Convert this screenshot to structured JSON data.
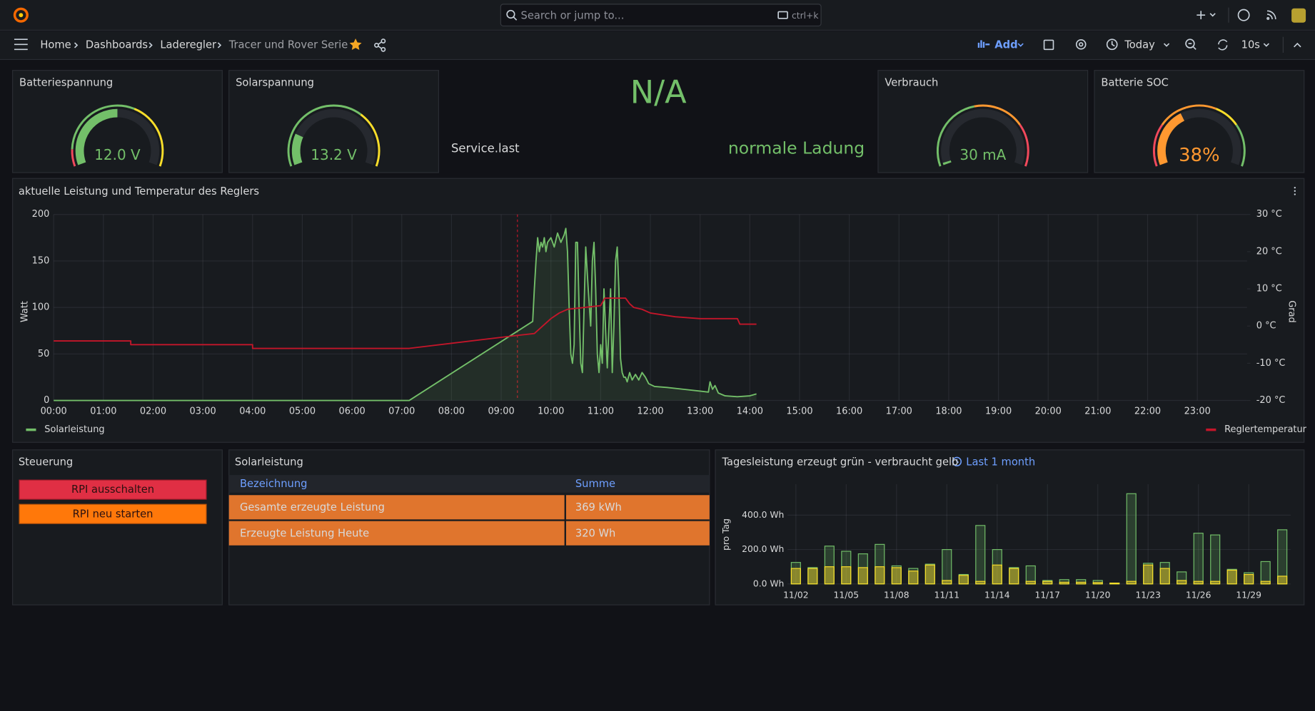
{
  "topbar": {
    "search_placeholder": "Search or jump to...",
    "search_shortcut": "ctrl+k"
  },
  "breadcrumbs": [
    "Home",
    "Dashboards",
    "Laderegler",
    "Tracer und Rover Serie"
  ],
  "toolbar": {
    "add": "Add",
    "time_range": "Today",
    "refresh_interval": "10s"
  },
  "status": {
    "value": "N/A",
    "field": "Service.last",
    "state": "normale Ladung"
  },
  "controls": {
    "title": "Steuerung",
    "buttons": [
      "RPI ausschalten",
      "RPI neu starten"
    ]
  },
  "table": {
    "title": "Solarleistung",
    "columns": [
      "Bezeichnung",
      "Summe"
    ],
    "rows": [
      [
        "Gesamte erzeugte Leistung",
        "369 kWh"
      ],
      [
        "Erzeugte Leistung Heute",
        "320 Wh"
      ]
    ]
  },
  "chart_data": [
    {
      "type": "gauge",
      "title": "Batteriespannung",
      "value": 12.0,
      "value_label": "12.0 V",
      "range": [
        11,
        13
      ],
      "color": "#73bf69",
      "thresholds": [
        {
          "value": 11,
          "color": "#f2495c"
        },
        {
          "value": 11.2,
          "color": "#73bf69"
        },
        {
          "value": 12.2,
          "color": "#fade2a"
        }
      ]
    },
    {
      "type": "gauge",
      "title": "Solarspannung",
      "value": 13.2,
      "value_label": "13.2 V",
      "range": [
        12,
        18
      ],
      "color": "#73bf69",
      "thresholds": [
        {
          "value": 12,
          "color": "#73bf69"
        },
        {
          "value": 16,
          "color": "#fade2a"
        }
      ]
    },
    {
      "type": "gauge",
      "title": "Verbrauch",
      "value": 30,
      "value_label": "30 mA",
      "range": [
        0,
        2000
      ],
      "color": "#73bf69",
      "thresholds": [
        {
          "value": 0,
          "color": "#73bf69"
        },
        {
          "value": 900,
          "color": "#ff9830"
        },
        {
          "value": 1500,
          "color": "#f2495c"
        }
      ]
    },
    {
      "type": "gauge",
      "title": "Batterie SOC",
      "value": 38,
      "value_label": "38%",
      "range": [
        0,
        100
      ],
      "color": "#ff9830",
      "thresholds": [
        {
          "value": 0,
          "color": "#f2495c"
        },
        {
          "value": 25,
          "color": "#ff9830"
        },
        {
          "value": 60,
          "color": "#fade2a"
        },
        {
          "value": 75,
          "color": "#73bf69"
        }
      ]
    },
    {
      "type": "line",
      "title": "aktuelle Leistung und Temperatur des Reglers",
      "ylabel": "Watt",
      "y2label": "Grad",
      "ylim": [
        0,
        200
      ],
      "yticks": [
        0,
        50,
        100,
        150,
        200
      ],
      "y2lim": [
        -20,
        30
      ],
      "y2ticks": [
        {
          "value": 30,
          "label": "30 °C"
        },
        {
          "value": 20,
          "label": "20 °C"
        },
        {
          "value": 10,
          "label": "10 °C"
        },
        {
          "value": 0,
          "label": "0 °C"
        },
        {
          "value": -10,
          "label": "-10 °C"
        },
        {
          "value": -20,
          "label": "-20 °C"
        }
      ],
      "xlim": [
        "00:00",
        "24:00"
      ],
      "xticks": [
        "00:00",
        "01:00",
        "02:00",
        "03:00",
        "04:00",
        "05:00",
        "06:00",
        "07:00",
        "08:00",
        "09:00",
        "10:00",
        "11:00",
        "12:00",
        "13:00",
        "14:00",
        "15:00",
        "16:00",
        "17:00",
        "18:00",
        "19:00",
        "20:00",
        "21:00",
        "22:00",
        "23:00"
      ],
      "grid": true,
      "series": [
        {
          "name": "Solarleistung",
          "color": "#73bf69",
          "fill": true,
          "x": [
            "00:00",
            "07:09",
            "09:38",
            "09:40",
            "09:42",
            "09:44",
            "09:46",
            "09:48",
            "09:50",
            "09:52",
            "09:54",
            "09:56",
            "10:00",
            "10:04",
            "10:08",
            "10:12",
            "10:16",
            "10:18",
            "10:20",
            "10:22",
            "10:24",
            "10:26",
            "10:28",
            "10:30",
            "10:32",
            "10:34",
            "10:36",
            "10:38",
            "10:40",
            "10:42",
            "10:45",
            "10:48",
            "10:50",
            "10:52",
            "10:54",
            "10:56",
            "10:58",
            "11:00",
            "11:02",
            "11:04",
            "11:06",
            "11:08",
            "11:10",
            "11:12",
            "11:14",
            "11:16",
            "11:18",
            "11:20",
            "11:22",
            "11:24",
            "11:26",
            "11:28",
            "11:30",
            "11:32",
            "11:35",
            "11:38",
            "11:42",
            "11:46",
            "11:50",
            "11:54",
            "11:58",
            "12:05",
            "12:20",
            "12:40",
            "13:00",
            "13:10",
            "13:12",
            "13:15",
            "13:18",
            "13:22",
            "13:30",
            "13:45",
            "14:00",
            "14:08"
          ],
          "values": [
            0,
            0,
            85,
            120,
            150,
            175,
            160,
            170,
            165,
            175,
            160,
            170,
            175,
            165,
            180,
            170,
            178,
            185,
            160,
            100,
            50,
            40,
            60,
            170,
            170,
            100,
            40,
            30,
            100,
            165,
            120,
            80,
            150,
            170,
            120,
            50,
            30,
            60,
            40,
            120,
            75,
            35,
            80,
            120,
            30,
            80,
            150,
            165,
            120,
            45,
            30,
            25,
            25,
            20,
            30,
            22,
            28,
            22,
            30,
            25,
            18,
            15,
            14,
            12,
            10,
            9,
            20,
            12,
            16,
            8,
            5,
            4,
            5,
            7
          ]
        },
        {
          "name": "Reglertemperatur",
          "color": "#c4162a",
          "axis": "y2",
          "x": [
            "00:00",
            "01:33",
            "01:33",
            "04:00",
            "04:00",
            "07:09",
            "09:20",
            "09:40",
            "09:45",
            "09:50",
            "09:55",
            "10:00",
            "10:10",
            "10:20",
            "10:40",
            "11:00",
            "11:05",
            "11:30",
            "11:35",
            "11:40",
            "11:50",
            "12:00",
            "12:30",
            "13:00",
            "13:45",
            "13:48",
            "14:08"
          ],
          "values": [
            -4,
            -4,
            -5,
            -5,
            -6,
            -6,
            -2.5,
            -2,
            -1,
            0,
            1,
            2,
            3.5,
            4.5,
            5,
            5.5,
            7.5,
            7.5,
            6,
            5,
            4.5,
            3.5,
            2.5,
            2,
            2,
            0.5,
            0.5
          ]
        }
      ]
    },
    {
      "type": "bar",
      "title": "Tagesleistung erzeugt grün - verbraucht gelb",
      "time_range": "Last 1 month",
      "ylabel": "pro Tag",
      "ylim": [
        0,
        580
      ],
      "yticks": [
        {
          "value": 0,
          "label": "0.0 Wh"
        },
        {
          "value": 200,
          "label": "200.0 Wh"
        },
        {
          "value": 400,
          "label": "400.0 Wh"
        }
      ],
      "grid": true,
      "categories": [
        "11/02",
        null,
        null,
        "11/05",
        null,
        null,
        "11/08",
        null,
        null,
        "11/11",
        null,
        null,
        "11/14",
        null,
        null,
        "11/17",
        null,
        null,
        "11/20",
        null,
        null,
        "11/23",
        null,
        null,
        "11/26",
        null,
        null,
        "11/29",
        null,
        null
      ],
      "series": [
        {
          "color": "#73bf69",
          "values": [
            125,
            95,
            220,
            190,
            175,
            230,
            105,
            90,
            115,
            200,
            55,
            340,
            200,
            95,
            105,
            20,
            25,
            25,
            20,
            5,
            525,
            120,
            125,
            70,
            295,
            285,
            85,
            65,
            130,
            315
          ]
        },
        {
          "color": "#fade2a",
          "values": [
            90,
            90,
            100,
            100,
            95,
            100,
            95,
            75,
            110,
            20,
            50,
            15,
            110,
            90,
            15,
            15,
            10,
            10,
            8,
            5,
            15,
            110,
            90,
            20,
            15,
            15,
            80,
            55,
            15,
            45
          ]
        }
      ]
    }
  ]
}
